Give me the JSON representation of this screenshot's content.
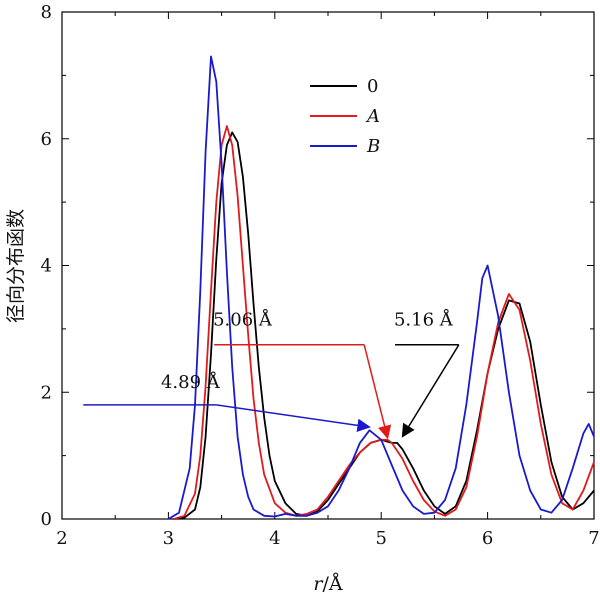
{
  "chart_data": {
    "type": "line",
    "title": "",
    "xlabel_italic": "r",
    "xlabel_rest": "/Å",
    "ylabel": "径向分布函数",
    "xlim": [
      2,
      7
    ],
    "ylim": [
      0,
      8
    ],
    "xticks": [
      2,
      3,
      4,
      5,
      6,
      7
    ],
    "yticks": [
      0,
      2,
      4,
      6,
      8
    ],
    "grid": false,
    "legend_position": "top-center",
    "series": [
      {
        "name": "0",
        "italic": false,
        "color": "#000000",
        "x": [
          3.05,
          3.15,
          3.25,
          3.3,
          3.35,
          3.4,
          3.45,
          3.5,
          3.55,
          3.6,
          3.65,
          3.7,
          3.75,
          3.8,
          3.85,
          3.9,
          3.95,
          4.0,
          4.1,
          4.2,
          4.3,
          4.4,
          4.5,
          4.6,
          4.7,
          4.8,
          4.9,
          5.0,
          5.1,
          5.15,
          5.2,
          5.3,
          5.4,
          5.5,
          5.6,
          5.7,
          5.8,
          5.9,
          6.0,
          6.1,
          6.2,
          6.3,
          6.4,
          6.5,
          6.6,
          6.7,
          6.8,
          6.9,
          7.0
        ],
        "y": [
          0,
          0.02,
          0.15,
          0.5,
          1.3,
          2.6,
          4.1,
          5.3,
          5.9,
          6.1,
          5.95,
          5.4,
          4.5,
          3.4,
          2.4,
          1.6,
          1.0,
          0.6,
          0.25,
          0.08,
          0.05,
          0.12,
          0.3,
          0.55,
          0.8,
          1.05,
          1.2,
          1.25,
          1.2,
          1.2,
          1.1,
          0.8,
          0.45,
          0.2,
          0.08,
          0.2,
          0.6,
          1.4,
          2.3,
          3.0,
          3.45,
          3.4,
          2.8,
          1.8,
          0.9,
          0.35,
          0.15,
          0.25,
          0.45
        ]
      },
      {
        "name": "A",
        "italic": true,
        "color": "#e31a1c",
        "x": [
          3.05,
          3.15,
          3.25,
          3.3,
          3.35,
          3.4,
          3.45,
          3.5,
          3.55,
          3.6,
          3.65,
          3.7,
          3.75,
          3.8,
          3.85,
          3.9,
          4.0,
          4.1,
          4.2,
          4.3,
          4.4,
          4.5,
          4.6,
          4.7,
          4.8,
          4.9,
          5.0,
          5.06,
          5.1,
          5.2,
          5.3,
          5.4,
          5.5,
          5.6,
          5.7,
          5.8,
          5.9,
          6.0,
          6.1,
          6.2,
          6.3,
          6.4,
          6.5,
          6.6,
          6.7,
          6.8,
          6.9,
          7.0
        ],
        "y": [
          0,
          0.05,
          0.4,
          1.0,
          2.1,
          3.6,
          5.0,
          5.9,
          6.2,
          5.9,
          5.1,
          4.0,
          2.9,
          1.9,
          1.2,
          0.7,
          0.25,
          0.1,
          0.05,
          0.08,
          0.15,
          0.35,
          0.6,
          0.85,
          1.05,
          1.2,
          1.25,
          1.25,
          1.2,
          0.95,
          0.6,
          0.3,
          0.12,
          0.05,
          0.15,
          0.5,
          1.3,
          2.3,
          3.1,
          3.55,
          3.3,
          2.5,
          1.5,
          0.7,
          0.25,
          0.15,
          0.45,
          0.9
        ]
      },
      {
        "name": "B",
        "italic": true,
        "color": "#1a1acc",
        "x": [
          3.0,
          3.1,
          3.2,
          3.25,
          3.3,
          3.35,
          3.4,
          3.45,
          3.5,
          3.55,
          3.6,
          3.65,
          3.7,
          3.75,
          3.8,
          3.9,
          4.0,
          4.1,
          4.2,
          4.3,
          4.4,
          4.5,
          4.6,
          4.7,
          4.8,
          4.89,
          5.0,
          5.1,
          5.2,
          5.3,
          5.4,
          5.5,
          5.6,
          5.7,
          5.8,
          5.9,
          5.95,
          6.0,
          6.1,
          6.2,
          6.3,
          6.4,
          6.5,
          6.6,
          6.7,
          6.8,
          6.9,
          6.95,
          7.0
        ],
        "y": [
          0,
          0.1,
          0.8,
          1.8,
          3.6,
          5.8,
          7.3,
          6.9,
          5.6,
          3.9,
          2.4,
          1.3,
          0.7,
          0.35,
          0.15,
          0.05,
          0.04,
          0.08,
          0.05,
          0.05,
          0.1,
          0.2,
          0.45,
          0.8,
          1.2,
          1.4,
          1.25,
          0.85,
          0.45,
          0.2,
          0.08,
          0.1,
          0.3,
          0.8,
          1.8,
          3.1,
          3.8,
          4.0,
          3.2,
          2.0,
          1.0,
          0.45,
          0.15,
          0.1,
          0.3,
          0.8,
          1.35,
          1.5,
          1.3
        ]
      }
    ],
    "annotations": [
      {
        "label": "4.89 Å",
        "color": "#1a1acc",
        "target_x": 4.89,
        "target_y": 1.45,
        "text_x": 2.93,
        "text_y": 2.07,
        "line_from_x": 2.2,
        "line_to_x": 3.45,
        "line_y": 1.8
      },
      {
        "label": "5.06 Å",
        "color": "#e31a1c",
        "target_x": 5.06,
        "target_y": 1.28,
        "text_x": 3.42,
        "text_y": 3.05,
        "line_from_x": 3.43,
        "line_to_x": 4.84,
        "line_y": 2.75
      },
      {
        "label": "5.16 Å",
        "color": "#000000",
        "target_x": 5.2,
        "target_y": 1.3,
        "text_x": 5.12,
        "text_y": 3.05,
        "line_from_x": 5.13,
        "line_to_x": 5.73,
        "line_y": 2.75
      }
    ]
  }
}
